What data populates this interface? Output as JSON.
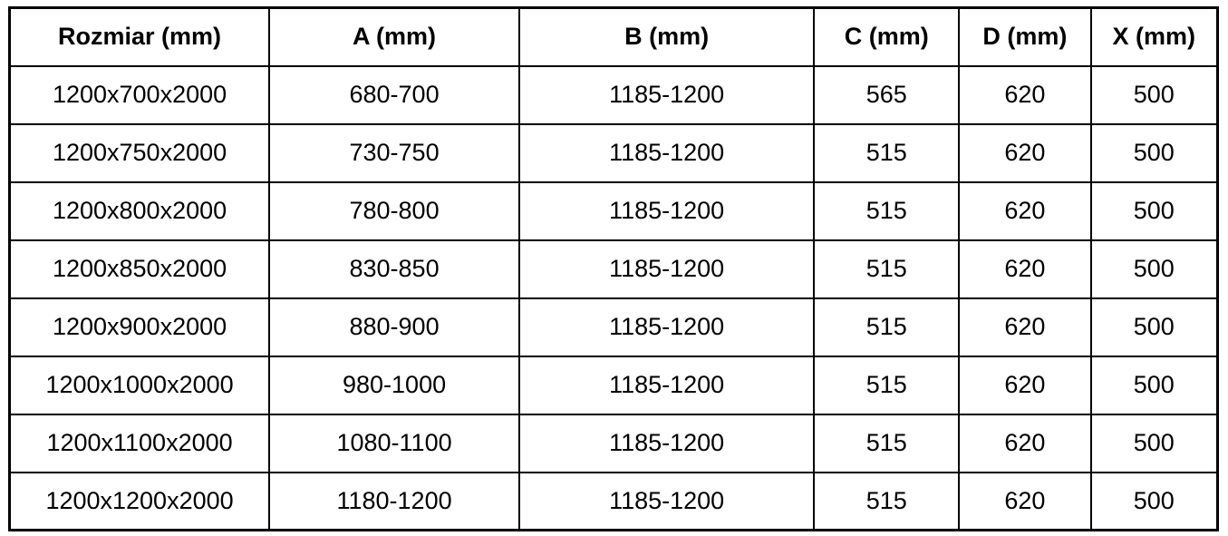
{
  "table": {
    "columns": [
      "Rozmiar (mm)",
      "A (mm)",
      "B (mm)",
      "C (mm)",
      "D (mm)",
      "X (mm)"
    ],
    "rows": [
      [
        "1200x700x2000",
        "680-700",
        "1185-1200",
        "565",
        "620",
        "500"
      ],
      [
        "1200x750x2000",
        "730-750",
        "1185-1200",
        "515",
        "620",
        "500"
      ],
      [
        "1200x800x2000",
        "780-800",
        "1185-1200",
        "515",
        "620",
        "500"
      ],
      [
        "1200x850x2000",
        "830-850",
        "1185-1200",
        "515",
        "620",
        "500"
      ],
      [
        "1200x900x2000",
        "880-900",
        "1185-1200",
        "515",
        "620",
        "500"
      ],
      [
        "1200x1000x2000",
        "980-1000",
        "1185-1200",
        "515",
        "620",
        "500"
      ],
      [
        "1200x1100x2000",
        "1080-1100",
        "1185-1200",
        "515",
        "620",
        "500"
      ],
      [
        "1200x1200x2000",
        "1180-1200",
        "1185-1200",
        "515",
        "620",
        "500"
      ]
    ]
  },
  "colors": {
    "border": "#000000",
    "text": "#000000",
    "background": "#ffffff"
  },
  "chart_data": {
    "type": "table",
    "title": "",
    "columns": [
      "Rozmiar (mm)",
      "A (mm)",
      "B (mm)",
      "C (mm)",
      "D (mm)",
      "X (mm)"
    ],
    "rows": [
      [
        "1200x700x2000",
        "680-700",
        "1185-1200",
        "565",
        "620",
        "500"
      ],
      [
        "1200x750x2000",
        "730-750",
        "1185-1200",
        "515",
        "620",
        "500"
      ],
      [
        "1200x800x2000",
        "780-800",
        "1185-1200",
        "515",
        "620",
        "500"
      ],
      [
        "1200x850x2000",
        "830-850",
        "1185-1200",
        "515",
        "620",
        "500"
      ],
      [
        "1200x900x2000",
        "880-900",
        "1185-1200",
        "515",
        "620",
        "500"
      ],
      [
        "1200x1000x2000",
        "980-1000",
        "1185-1200",
        "515",
        "620",
        "500"
      ],
      [
        "1200x1100x2000",
        "1080-1100",
        "1185-1200",
        "515",
        "620",
        "500"
      ],
      [
        "1200x1200x2000",
        "1180-1200",
        "1185-1200",
        "515",
        "620",
        "500"
      ]
    ]
  }
}
